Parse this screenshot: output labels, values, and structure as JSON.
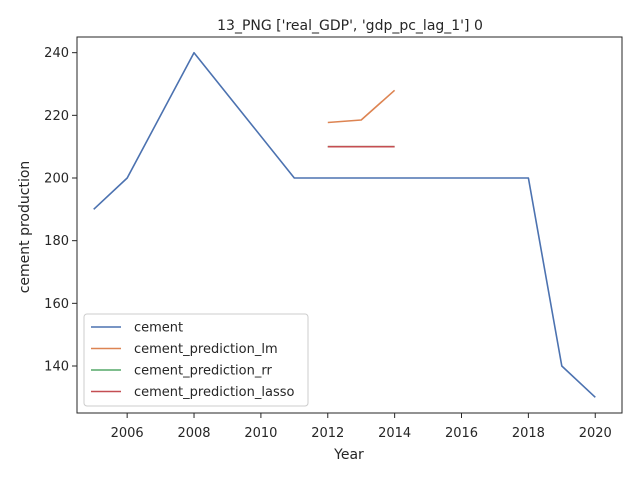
{
  "chart_data": {
    "type": "line",
    "title": "13_PNG ['real_GDP', 'gdp_pc_lag_1'] 0",
    "xlabel": "Year",
    "ylabel": "cement production",
    "xlim": [
      2004.5,
      2020.8
    ],
    "ylim": [
      125,
      245
    ],
    "x_ticks": [
      2006,
      2008,
      2010,
      2012,
      2014,
      2016,
      2018,
      2020
    ],
    "y_ticks": [
      140,
      160,
      180,
      200,
      220,
      240
    ],
    "grid": false,
    "legend_position": "lower-left",
    "series": [
      {
        "name": "cement",
        "color": "#4c72b0",
        "x": [
          2005,
          2006,
          2008,
          2011,
          2018,
          2019,
          2020
        ],
        "y": [
          190,
          200,
          240,
          200,
          200,
          140,
          130
        ]
      },
      {
        "name": "cement_prediction_lm",
        "color": "#dd8452",
        "x": [
          2012,
          2013,
          2014
        ],
        "y": [
          217.7,
          218.5,
          228
        ]
      },
      {
        "name": "cement_prediction_rr",
        "color": "#55a868",
        "x": [
          2012,
          2013,
          2014
        ],
        "y": [
          210,
          210,
          210
        ]
      },
      {
        "name": "cement_prediction_lasso",
        "color": "#c44e52",
        "x": [
          2012,
          2013,
          2014
        ],
        "y": [
          210,
          210,
          210
        ]
      }
    ]
  }
}
